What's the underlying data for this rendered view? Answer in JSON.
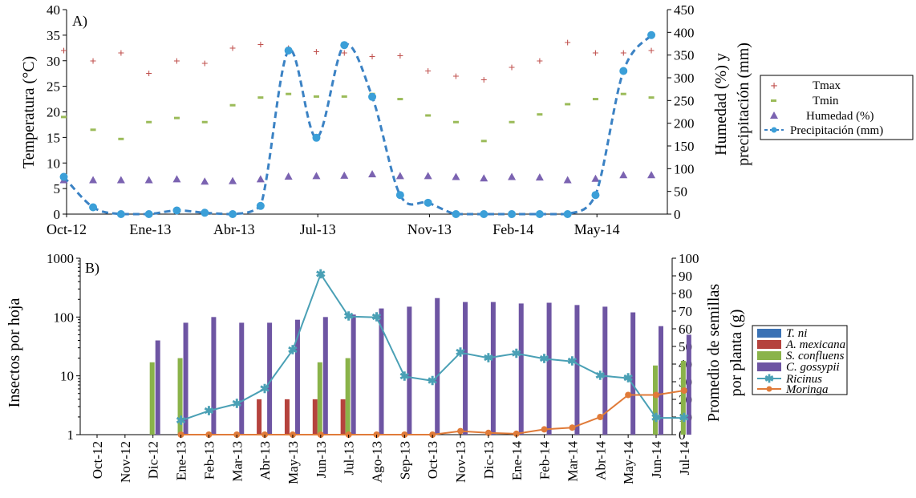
{
  "chart_data": [
    {
      "type": "line",
      "panel_label": "A)",
      "ylabel": "Temperatura (°C)",
      "y2label_line1": "Humedad (%) y",
      "y2label_line2": "precipitación (mm)",
      "ylim": [
        0,
        40
      ],
      "y2lim": [
        0,
        450
      ],
      "yticks": [
        "0",
        "5",
        "10",
        "15",
        "20",
        "25",
        "30",
        "35",
        "40"
      ],
      "y2ticks": [
        "0",
        "50",
        "100",
        "150",
        "200",
        "250",
        "300",
        "350",
        "400",
        "450"
      ],
      "xtick_labels": [
        {
          "i": 0,
          "label": "Oct-12"
        },
        {
          "i": 3,
          "label": "Ene-13"
        },
        {
          "i": 6,
          "label": "Abr-13"
        },
        {
          "i": 9,
          "label": "Jul-13"
        },
        {
          "i": 13,
          "label": "Nov-13"
        },
        {
          "i": 16,
          "label": "Feb-14"
        },
        {
          "i": 19,
          "label": "May-14"
        }
      ],
      "months": [
        "Oct-12",
        "Nov-12",
        "Dic-12",
        "Ene-13",
        "Feb-13",
        "Mar-13",
        "Abr-13",
        "May-13",
        "Jun-13",
        "Jul-13",
        "Ago-13",
        "Sep-13",
        "Oct-13",
        "Nov-13",
        "Dic-13",
        "Ene-14",
        "Feb-14",
        "Mar-14",
        "Abr-14",
        "May-14",
        "Jun-14",
        "Jul-14"
      ],
      "legend": {
        "tmax": "Tmax",
        "tmin": "Tmin",
        "hum": "Humedad (%)",
        "prec": "Precipitación (mm)"
      },
      "series": {
        "tmax": {
          "x": [
            -0.1,
            0.95,
            1.95,
            2.95,
            3.95,
            4.95,
            5.95,
            6.95,
            7.95,
            8.95,
            9.95,
            10.95,
            11.95,
            12.95,
            13.95,
            14.95,
            15.95,
            16.95,
            17.95,
            18.95,
            19.95,
            20.95
          ],
          "values": [
            32,
            30,
            31.5,
            27.5,
            30,
            29.5,
            32.5,
            33.2,
            32.5,
            31.8,
            31.5,
            30.8,
            31,
            28,
            27,
            26.3,
            28.7,
            30,
            33.6,
            31.5,
            31.5,
            32
          ]
        },
        "tmin": {
          "x": [
            -0.1,
            0.95,
            1.95,
            2.95,
            3.95,
            4.95,
            5.95,
            6.95,
            7.95,
            8.95,
            9.95,
            10.95,
            11.95,
            12.95,
            13.95,
            14.95,
            15.95,
            16.95,
            17.95,
            18.95,
            19.95,
            20.95
          ],
          "values": [
            19,
            16.5,
            14.7,
            18,
            18.8,
            18,
            21.3,
            22.8,
            23.5,
            23,
            23,
            23.5,
            22.5,
            19.3,
            18,
            14.3,
            18,
            19.5,
            21.5,
            22.5,
            23.5,
            22.8
          ]
        },
        "humedad": {
          "x": [
            -0.1,
            0.95,
            1.95,
            2.95,
            3.95,
            4.95,
            5.95,
            6.95,
            7.95,
            8.95,
            9.95,
            10.95,
            11.95,
            12.95,
            13.95,
            14.95,
            15.95,
            16.95,
            17.95,
            18.95,
            19.95,
            20.95
          ],
          "values": [
            75,
            75,
            75,
            75,
            77,
            72,
            73,
            77,
            83,
            84,
            85,
            88,
            84,
            84,
            82,
            79,
            82,
            81,
            75,
            78,
            86,
            86
          ]
        },
        "precipitacion": {
          "x": [
            -0.1,
            0.95,
            1.95,
            2.95,
            3.95,
            4.95,
            5.95,
            6.95,
            7.95,
            8.95,
            9.95,
            10.95,
            11.95,
            12.95,
            13.95,
            14.95,
            15.95,
            16.95,
            17.95,
            18.95,
            19.95,
            20.95
          ],
          "values": [
            82,
            15,
            0,
            0,
            8,
            3,
            0,
            18,
            360,
            168,
            372,
            258,
            42,
            25,
            0,
            0,
            0,
            0,
            0,
            42,
            315,
            394
          ]
        }
      }
    },
    {
      "type": "bar",
      "panel_label": "B)",
      "ylabel": "Insectos por hoja",
      "y2label_line1": "Promedio de semillas",
      "y2label_line2": "por planta (g)",
      "yscale": "log",
      "ylim": [
        1,
        1000
      ],
      "y2lim": [
        0,
        100
      ],
      "yticks": [
        "1",
        "10",
        "100",
        "1000"
      ],
      "y2ticks": [
        "0",
        "10",
        "20",
        "30",
        "40",
        "50",
        "60",
        "70",
        "80",
        "90",
        "100"
      ],
      "categories": [
        "Oct-12",
        "Nov-12",
        "Dic-12",
        "Ene-13",
        "Feb-13",
        "Mar-13",
        "Abr-13",
        "May-13",
        "Jun-13",
        "Jul-13",
        "Ago-13",
        "Sep-13",
        "Oct-13",
        "Nov-13",
        "Dic-13",
        "Ene-14",
        "Feb-14",
        "Mar-14",
        "Abr-14",
        "May-14",
        "Jun-14",
        "Jul-14"
      ],
      "legend": {
        "tni": "T. ni",
        "amex": "A. mexicana",
        "scon": "S. confluens",
        "cgos": "C. gossypii",
        "ric": "Ricinus",
        "mor": "Moringa"
      },
      "series": [
        {
          "key": "tni",
          "name": "T. ni",
          "color": "#3a72b5",
          "values": [
            null,
            null,
            null,
            null,
            null,
            null,
            null,
            null,
            null,
            null,
            null,
            null,
            null,
            null,
            null,
            null,
            null,
            null,
            null,
            null,
            null,
            null
          ]
        },
        {
          "key": "amex",
          "name": "A. mexicana",
          "color": "#b5423d",
          "values": [
            null,
            null,
            null,
            null,
            null,
            null,
            4,
            4,
            4,
            4,
            null,
            null,
            null,
            null,
            null,
            null,
            null,
            null,
            null,
            null,
            null,
            null
          ]
        },
        {
          "key": "scon",
          "name": "S. confluens",
          "color": "#8ab34a",
          "values": [
            null,
            null,
            17,
            20,
            null,
            null,
            null,
            null,
            17,
            20,
            null,
            null,
            null,
            null,
            null,
            null,
            null,
            null,
            null,
            null,
            15,
            18
          ]
        },
        {
          "key": "cgos",
          "name": "C. gossypii",
          "color": "#6e55a3",
          "values": [
            null,
            null,
            40,
            80,
            100,
            80,
            80,
            90,
            100,
            110,
            140,
            150,
            210,
            180,
            180,
            170,
            175,
            160,
            150,
            120,
            70,
            50
          ]
        }
      ],
      "lines": [
        {
          "key": "ric",
          "name": "Ricinus",
          "color": "#4aa0b5",
          "x": [
            3,
            4,
            5,
            6,
            7,
            8,
            9,
            10,
            11,
            12,
            13,
            14,
            15,
            16,
            17,
            18,
            19,
            20,
            21
          ],
          "values": [
            8,
            13.5,
            17.5,
            26,
            48,
            91,
            67,
            66.5,
            33,
            30.5,
            46.5,
            43.5,
            46,
            43,
            41.5,
            33.5,
            32,
            9.5,
            9.5
          ]
        },
        {
          "key": "mor",
          "name": "Moringa",
          "color": "#e07b39",
          "x": [
            3,
            4,
            5,
            6,
            7,
            8,
            9,
            10,
            11,
            12,
            13,
            14,
            15,
            16,
            17,
            18,
            19,
            20,
            21
          ],
          "values": [
            0,
            0,
            0,
            0,
            0,
            0,
            0,
            0,
            0,
            0,
            2,
            1,
            0.5,
            3,
            4,
            10,
            22.5,
            22.5,
            25
          ]
        }
      ]
    }
  ]
}
